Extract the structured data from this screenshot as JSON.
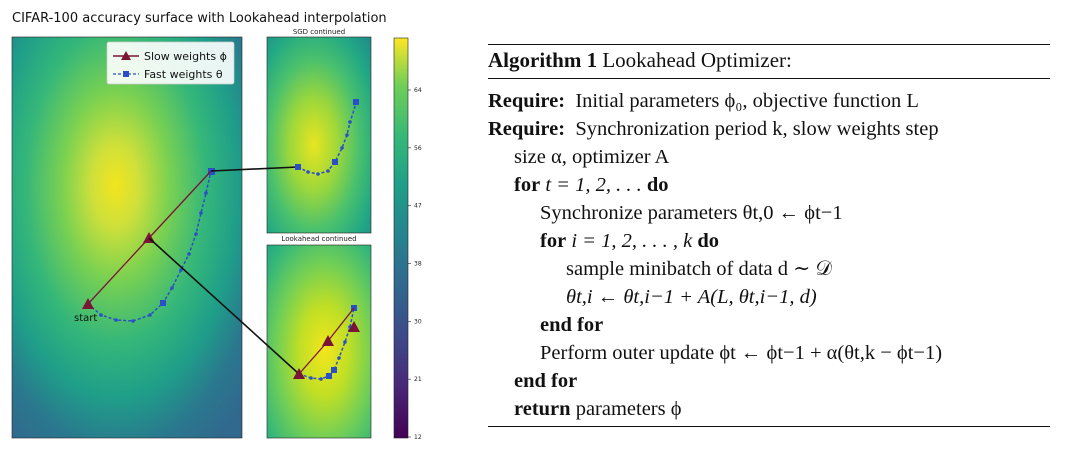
{
  "figure": {
    "title": "CIFAR-100 accuracy surface with Lookahead interpolation",
    "sgd_title": "SGD continued",
    "lookahead_title": "Lookahead continued",
    "start_label": "start",
    "legend": {
      "slow": "Slow weights ϕ",
      "fast": "Fast weights θ"
    },
    "colorbar_ticks": [
      "64",
      "56",
      "47",
      "38",
      "30",
      "21",
      "12"
    ],
    "colors": {
      "slow": "#7a1535",
      "fast": "#2b4fc7",
      "path": "#111111"
    }
  },
  "algorithm": {
    "heading_bold": "Algorithm 1",
    "heading_rest": " Lookahead Optimizer:",
    "require": "Require:",
    "for_kw": "for",
    "do_kw": "do",
    "end_for": "end for",
    "return_kw": "return",
    "lines": {
      "req1": "Initial parameters ϕ₀, objective function L",
      "req2a": "Synchronization period k, slow weights step",
      "req2b": "size α, optimizer A",
      "for_t": "t = 1, 2, . . .",
      "sync": "Synchronize parameters θt,0 ← ϕt−1",
      "for_i": "i = 1, 2, . . . , k",
      "sample": "sample minibatch of data d ∼ 𝒟",
      "update": "θt,i ← θt,i−1 + A(L, θt,i−1, d)",
      "outer": "Perform outer update ϕt ← ϕt−1 + α(θt,k − ϕt−1)",
      "ret": "parameters ϕ"
    }
  }
}
